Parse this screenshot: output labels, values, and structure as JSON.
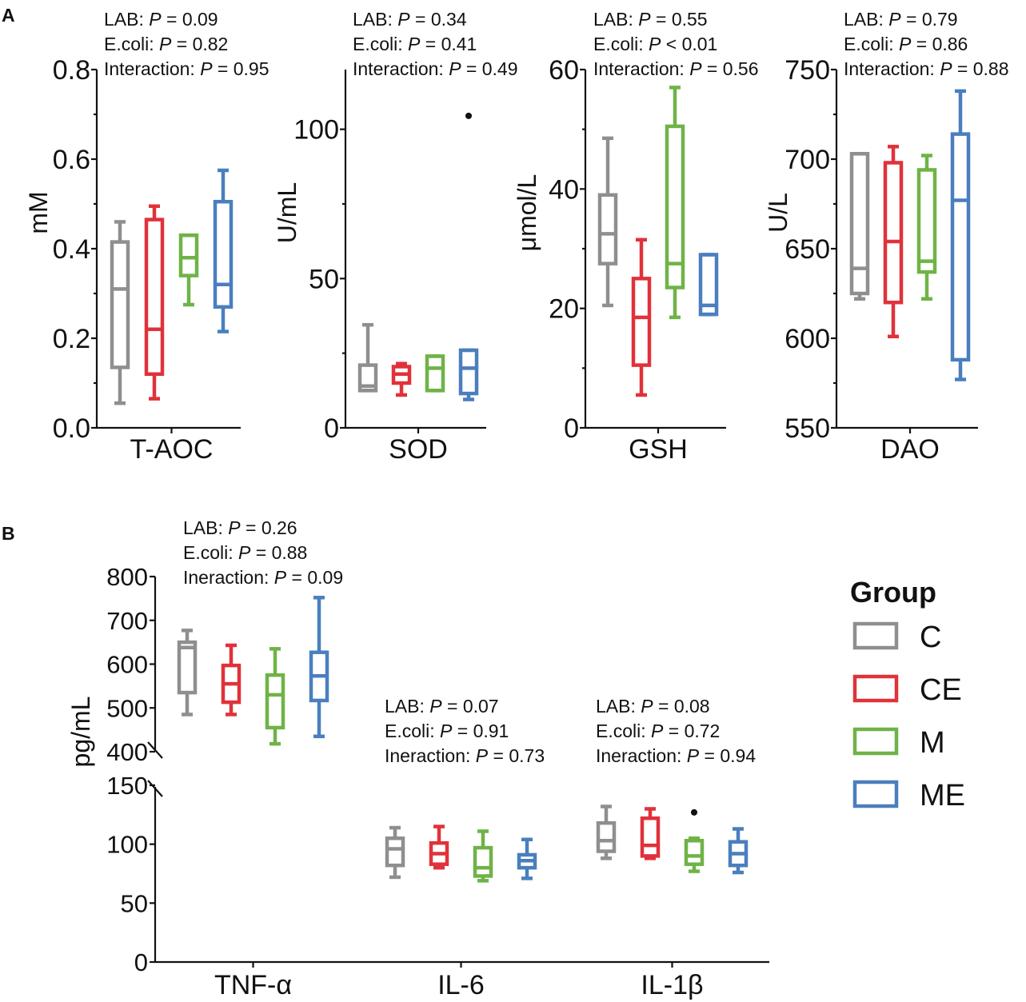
{
  "panels": {
    "a": "A",
    "b": "B"
  },
  "colors": {
    "C": "#8f8f8f",
    "CE": "#e0323a",
    "M": "#6fb347",
    "ME": "#4a7fbe"
  },
  "legend": {
    "title": "Group",
    "items": [
      {
        "key": "C",
        "label": "C"
      },
      {
        "key": "CE",
        "label": "CE"
      },
      {
        "key": "M",
        "label": "M"
      },
      {
        "key": "ME",
        "label": "ME"
      }
    ]
  },
  "chart_data": [
    {
      "type": "boxplot",
      "category": "T-AOC",
      "ylabel": "mM",
      "ylim": [
        0,
        0.8
      ],
      "ticks": [
        "0.0",
        "0.2",
        "0.4",
        "0.6",
        "0.8"
      ],
      "annotation": [
        {
          "label": "LAB: ",
          "stat": "P",
          "rest": " = 0.09"
        },
        {
          "label": "E.coli: ",
          "stat": "P",
          "rest": " = 0.82"
        },
        {
          "label": "Interaction: ",
          "stat": "P",
          "rest": " = 0.95"
        }
      ],
      "series": [
        {
          "name": "C",
          "min": 0.055,
          "q1": 0.135,
          "median": 0.31,
          "q3": 0.415,
          "max": 0.46
        },
        {
          "name": "CE",
          "min": 0.065,
          "q1": 0.12,
          "median": 0.22,
          "q3": 0.465,
          "max": 0.495
        },
        {
          "name": "M",
          "min": 0.275,
          "q1": 0.34,
          "median": 0.38,
          "q3": 0.43,
          "max": 0.43
        },
        {
          "name": "ME",
          "min": 0.215,
          "q1": 0.27,
          "median": 0.32,
          "q3": 0.505,
          "max": 0.575
        }
      ]
    },
    {
      "type": "boxplot",
      "category": "SOD",
      "ylabel": "U/mL",
      "ylim": [
        0,
        120
      ],
      "ticks": [
        "0",
        "50",
        "100"
      ],
      "annotation": [
        {
          "label": "LAB: ",
          "stat": "P",
          "rest": " = 0.34"
        },
        {
          "label": "E.coli: ",
          "stat": "P",
          "rest": " = 0.41"
        },
        {
          "label": "Interaction: ",
          "stat": "P",
          "rest": " = 0.49"
        }
      ],
      "series": [
        {
          "name": "C",
          "min": 12.5,
          "q1": 12.5,
          "median": 14,
          "q3": 21,
          "max": 34.5
        },
        {
          "name": "CE",
          "min": 11,
          "q1": 15,
          "median": 18,
          "q3": 20.5,
          "max": 21.5
        },
        {
          "name": "M",
          "min": 12.5,
          "q1": 12.5,
          "median": 20,
          "q3": 24,
          "max": 24
        },
        {
          "name": "ME",
          "min": 9.5,
          "q1": 11.5,
          "median": 20,
          "q3": 26,
          "max": 26,
          "outliers": [
            104.5
          ]
        }
      ]
    },
    {
      "type": "boxplot",
      "category": "GSH",
      "ylabel": "μmol/L",
      "ylim": [
        0,
        60
      ],
      "ticks": [
        "0",
        "20",
        "40",
        "60"
      ],
      "annotation": [
        {
          "label": "LAB: ",
          "stat": "P",
          "rest": " = 0.55"
        },
        {
          "label": "E.coli: ",
          "stat": "P",
          "rest": " < 0.01"
        },
        {
          "label": "Interaction: ",
          "stat": "P",
          "rest": " = 0.56"
        }
      ],
      "series": [
        {
          "name": "C",
          "min": 20.5,
          "q1": 27.5,
          "median": 32.5,
          "q3": 39,
          "max": 48.5
        },
        {
          "name": "CE",
          "min": 5.5,
          "q1": 10.5,
          "median": 18.5,
          "q3": 25,
          "max": 31.5
        },
        {
          "name": "M",
          "min": 18.5,
          "q1": 23.5,
          "median": 27.5,
          "q3": 50.5,
          "max": 57
        },
        {
          "name": "ME",
          "min": 19,
          "q1": 19,
          "median": 20.5,
          "q3": 29,
          "max": 29
        }
      ]
    },
    {
      "type": "boxplot",
      "category": "DAO",
      "ylabel": "U/L",
      "ylim": [
        550,
        750
      ],
      "ticks": [
        "550",
        "600",
        "650",
        "700",
        "750"
      ],
      "annotation": [
        {
          "label": "LAB: ",
          "stat": "P",
          "rest": " = 0.79"
        },
        {
          "label": "E.coli: ",
          "stat": "P",
          "rest": " = 0.86"
        },
        {
          "label": "Interaction: ",
          "stat": "P",
          "rest": " = 0.88"
        }
      ],
      "series": [
        {
          "name": "C",
          "min": 622,
          "q1": 625,
          "median": 639,
          "q3": 703,
          "max": 703
        },
        {
          "name": "CE",
          "min": 601,
          "q1": 620,
          "median": 654,
          "q3": 698,
          "max": 707
        },
        {
          "name": "M",
          "min": 622,
          "q1": 637,
          "median": 643,
          "q3": 694,
          "max": 702
        },
        {
          "name": "ME",
          "min": 577,
          "q1": 588,
          "median": 677,
          "q3": 714,
          "max": 738
        }
      ]
    },
    {
      "type": "boxplot",
      "ylabel": "pg/mL",
      "ylim": [
        0,
        800
      ],
      "axis_break": [
        150,
        400
      ],
      "ticks": [
        "0",
        "50",
        "100",
        "150",
        "400",
        "500",
        "600",
        "700",
        "800"
      ],
      "groups": [
        {
          "category": "TNF-α",
          "annotation": [
            {
              "label": "LAB: ",
              "stat": "P",
              "rest": " = 0.26"
            },
            {
              "label": "E.coli: ",
              "stat": "P",
              "rest": " = 0.88"
            },
            {
              "label": "Ineraction: ",
              "stat": "P",
              "rest": " = 0.09"
            }
          ],
          "series": [
            {
              "name": "C",
              "min": 485,
              "q1": 535,
              "median": 638,
              "q3": 650,
              "max": 677
            },
            {
              "name": "CE",
              "min": 485,
              "q1": 513,
              "median": 555,
              "q3": 597,
              "max": 643
            },
            {
              "name": "M",
              "min": 418,
              "q1": 455,
              "median": 530,
              "q3": 575,
              "max": 635
            },
            {
              "name": "ME",
              "min": 435,
              "q1": 517,
              "median": 573,
              "q3": 627,
              "max": 752
            }
          ]
        },
        {
          "category": "IL-6",
          "annotation": [
            {
              "label": "LAB: ",
              "stat": "P",
              "rest": " = 0.07"
            },
            {
              "label": "E.coli: ",
              "stat": "P",
              "rest": " = 0.91"
            },
            {
              "label": "Ineraction: ",
              "stat": "P",
              "rest": " = 0.73"
            }
          ],
          "series": [
            {
              "name": "C",
              "min": 72,
              "q1": 82,
              "median": 96,
              "q3": 105,
              "max": 114
            },
            {
              "name": "CE",
              "min": 80,
              "q1": 83,
              "median": 92,
              "q3": 101,
              "max": 115
            },
            {
              "name": "M",
              "min": 69,
              "q1": 73,
              "median": 80,
              "q3": 97,
              "max": 111
            },
            {
              "name": "ME",
              "min": 71,
              "q1": 80,
              "median": 86,
              "q3": 91,
              "max": 104
            }
          ]
        },
        {
          "category": "IL-1β",
          "annotation": [
            {
              "label": "LAB: ",
              "stat": "P",
              "rest": " = 0.08"
            },
            {
              "label": "E.coli: ",
              "stat": "P",
              "rest": " = 0.72"
            },
            {
              "label": "Ineraction: ",
              "stat": "P",
              "rest": " = 0.94"
            }
          ],
          "series": [
            {
              "name": "C",
              "min": 88,
              "q1": 94,
              "median": 103,
              "q3": 118,
              "max": 132
            },
            {
              "name": "CE",
              "min": 88,
              "q1": 90,
              "median": 99,
              "q3": 122,
              "max": 130
            },
            {
              "name": "M",
              "min": 77,
              "q1": 83,
              "median": 90,
              "q3": 103,
              "max": 105,
              "outliers": [
                127
              ]
            },
            {
              "name": "ME",
              "min": 76,
              "q1": 82,
              "median": 92,
              "q3": 102,
              "max": 113
            }
          ]
        }
      ]
    }
  ]
}
